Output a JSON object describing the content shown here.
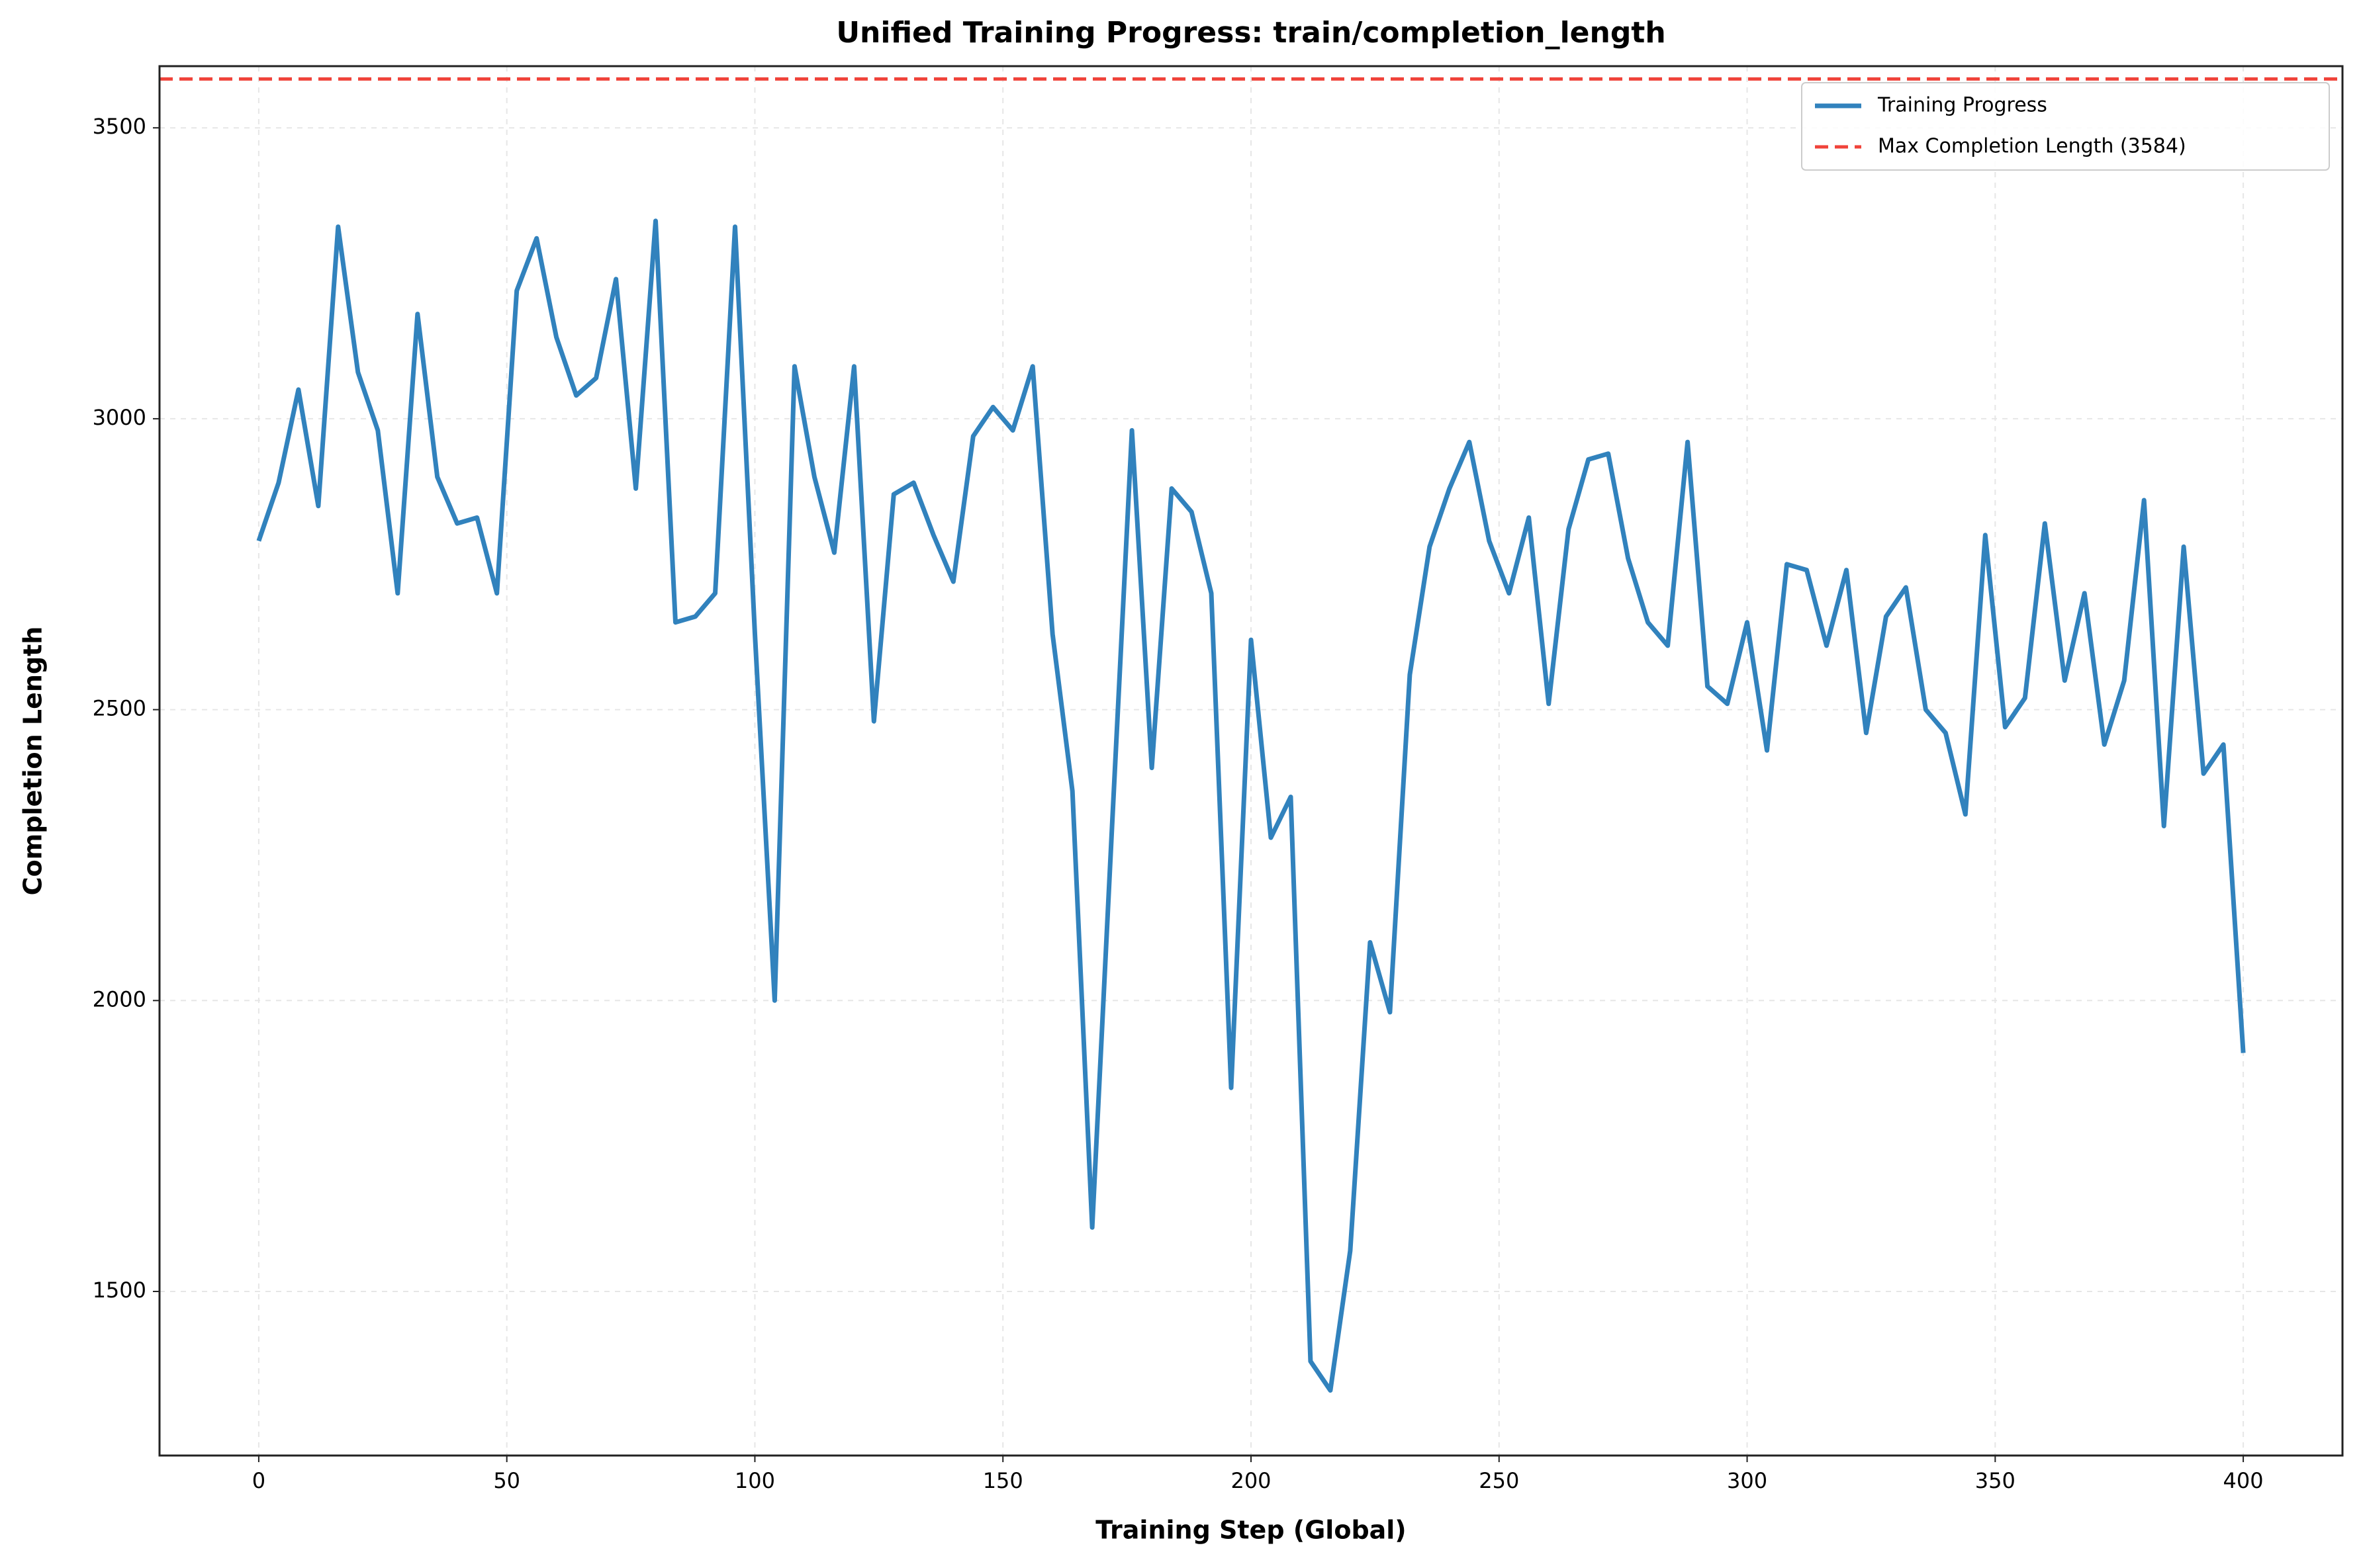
{
  "chart_data": {
    "type": "line",
    "title": "Unified Training Progress: train/completion_length",
    "x_label": "Training Step (Global)",
    "y_label": "Completion Length",
    "x": [
      0,
      4,
      8,
      12,
      16,
      20,
      24,
      28,
      32,
      36,
      40,
      44,
      48,
      52,
      56,
      60,
      64,
      68,
      72,
      76,
      80,
      84,
      88,
      92,
      96,
      100,
      104,
      108,
      112,
      116,
      120,
      124,
      128,
      132,
      136,
      140,
      144,
      148,
      152,
      156,
      160,
      164,
      168,
      172,
      176,
      180,
      184,
      188,
      192,
      196,
      200,
      204,
      208,
      212,
      216,
      220,
      224,
      228,
      232,
      236,
      240,
      244,
      248,
      252,
      256,
      260,
      264,
      268,
      272,
      276,
      280,
      284,
      288,
      292,
      296,
      300,
      304,
      308,
      312,
      316,
      320,
      324,
      328,
      332,
      336,
      340,
      344,
      348,
      352,
      356,
      360,
      364,
      368,
      372,
      376,
      380,
      384,
      388,
      392,
      396,
      400
    ],
    "series": [
      {
        "name": "Training Progress",
        "color": "#3182bd",
        "values": [
          2790,
          2890,
          3050,
          2850,
          3330,
          3080,
          2980,
          2700,
          3180,
          2900,
          2820,
          2830,
          2700,
          3220,
          3310,
          3140,
          3040,
          3070,
          3240,
          2880,
          3340,
          2650,
          2660,
          2700,
          3330,
          2630,
          2000,
          3090,
          2900,
          2770,
          3090,
          2480,
          2870,
          2890,
          2800,
          2720,
          2970,
          3020,
          2980,
          3090,
          2630,
          2360,
          1610,
          2300,
          2980,
          2400,
          2880,
          2840,
          2700,
          1850,
          2620,
          2280,
          2350,
          1380,
          1330,
          1570,
          2100,
          1980,
          2560,
          2780,
          2880,
          2960,
          2790,
          2700,
          2830,
          2510,
          2810,
          2930,
          2940,
          2760,
          2650,
          2610,
          2960,
          2540,
          2510,
          2650,
          2430,
          2750,
          2740,
          2610,
          2740,
          2460,
          2660,
          2710,
          2500,
          2460,
          2320,
          2800,
          2470,
          2520,
          2820,
          2550,
          2700,
          2440,
          2550,
          2860,
          2300,
          2780,
          2390,
          2440,
          1910
        ]
      },
      {
        "name": "Max Completion Length (3584)",
        "color": "#f0433a",
        "style": "dashed",
        "hline": 3584
      }
    ],
    "xlim": [
      -20,
      420
    ],
    "ylim": [
      1218,
      3606
    ],
    "xticks": [
      0,
      50,
      100,
      150,
      200,
      250,
      300,
      350,
      400
    ],
    "yticks": [
      1500,
      2000,
      2500,
      3000,
      3500
    ],
    "grid": true,
    "legend": "upper right"
  }
}
